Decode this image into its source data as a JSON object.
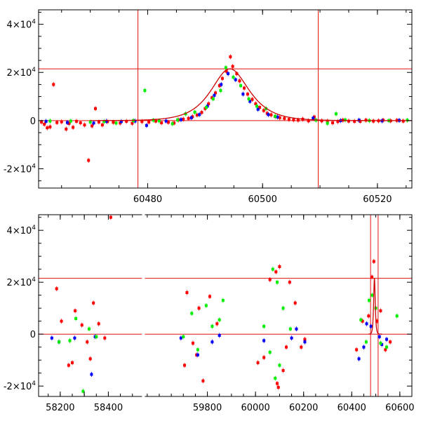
{
  "chart_data": [
    {
      "type": "scatter",
      "name": "zoom",
      "title": "",
      "xlabel": "",
      "ylabel": "",
      "xlim": [
        60461,
        60526
      ],
      "ylim": [
        -28000,
        46000
      ],
      "grid": false,
      "x_ticks": [
        60480,
        60500,
        60520
      ],
      "y_ticks": [
        {
          "value": -20000,
          "base": "-2×10",
          "exp": "4"
        },
        {
          "value": 0,
          "base": "0",
          "exp": ""
        },
        {
          "value": 20000,
          "base": "2×10",
          "exp": "4"
        },
        {
          "value": 40000,
          "base": "4×10",
          "exp": "4"
        }
      ],
      "reference_lines": {
        "horizontal": [
          0,
          21500
        ],
        "vertical": [
          60478.3,
          60509.7
        ]
      },
      "model_curve": {
        "color": "#cc0000",
        "baseline": 0,
        "peak_x": 60494.3,
        "peak_y": 21500,
        "rise_timescale": 2.9,
        "fall_timescale": 3.0
      },
      "series": [
        {
          "color": "#ff0000",
          "points": [
            [
              60461.5,
              -600
            ],
            [
              60462.0,
              -1500
            ],
            [
              60462.5,
              -3000
            ],
            [
              60463.0,
              -2600
            ],
            [
              60463.6,
              15000
            ],
            [
              60464.2,
              -800
            ],
            [
              60465.0,
              -500
            ],
            [
              60465.8,
              -3500
            ],
            [
              60466.3,
              -1200
            ],
            [
              60467.0,
              -2800
            ],
            [
              60467.6,
              -300
            ],
            [
              60468.3,
              -900
            ],
            [
              60469.0,
              -1800
            ],
            [
              60469.7,
              -16500
            ],
            [
              60470.3,
              -2200
            ],
            [
              60470.9,
              5000
            ],
            [
              60471.5,
              -600
            ],
            [
              60472.1,
              -1800
            ],
            [
              60473.0,
              -400
            ],
            [
              60474.0,
              -700
            ],
            [
              60475.2,
              -1000
            ],
            [
              60476.3,
              -300
            ],
            [
              60477.3,
              -1100
            ],
            [
              60479.0,
              -400
            ],
            [
              60480.2,
              -600
            ],
            [
              60481.4,
              -200
            ],
            [
              60482.4,
              -900
            ],
            [
              60483.6,
              -700
            ],
            [
              60484.6,
              -1000
            ],
            [
              60485.4,
              300
            ],
            [
              60486.2,
              600
            ],
            [
              60487.1,
              900
            ],
            [
              60487.8,
              1600
            ],
            [
              60488.6,
              2300
            ],
            [
              60489.4,
              3400
            ],
            [
              60490.0,
              5000
            ],
            [
              60490.6,
              7000
            ],
            [
              60491.2,
              9500
            ],
            [
              60491.8,
              11500
            ],
            [
              60492.5,
              14500
            ],
            [
              60493.0,
              17500
            ],
            [
              60493.7,
              20500
            ],
            [
              60494.4,
              26500
            ],
            [
              60494.8,
              22500
            ],
            [
              60495.5,
              19500
            ],
            [
              60496.0,
              16500
            ],
            [
              60496.8,
              13500
            ],
            [
              60497.4,
              11000
            ],
            [
              60498.2,
              8800
            ],
            [
              60498.8,
              7000
            ],
            [
              60499.5,
              5500
            ],
            [
              60500.2,
              4200
            ],
            [
              60500.8,
              3000
            ],
            [
              60501.5,
              2400
            ],
            [
              60502.2,
              1700
            ],
            [
              60503.0,
              1200
            ],
            [
              60503.8,
              900
            ],
            [
              60504.6,
              500
            ],
            [
              60505.4,
              300
            ],
            [
              60506.2,
              200
            ],
            [
              60507.0,
              600
            ],
            [
              60508.0,
              -100
            ],
            [
              60509.0,
              1500
            ],
            [
              60510.3,
              -100
            ],
            [
              60511.3,
              -200
            ],
            [
              60512.2,
              -900
            ],
            [
              60513.1,
              -400
            ],
            [
              60514.0,
              200
            ],
            [
              60515.0,
              -200
            ],
            [
              60516.0,
              -300
            ],
            [
              60517.0,
              -300
            ],
            [
              60518.0,
              200
            ],
            [
              60519.3,
              -200
            ],
            [
              60520.2,
              -100
            ],
            [
              60521.0,
              200
            ],
            [
              60522.3,
              -100
            ],
            [
              60523.4,
              100
            ],
            [
              60524.5,
              -200
            ]
          ]
        },
        {
          "color": "#0000ff",
          "points": [
            [
              60462.3,
              -300
            ],
            [
              60466.0,
              -800
            ],
            [
              60470.6,
              -1000
            ],
            [
              60472.8,
              -300
            ],
            [
              60475.4,
              -400
            ],
            [
              60477.8,
              -200
            ],
            [
              60479.8,
              -2000
            ],
            [
              60483.2,
              -200
            ],
            [
              60485.8,
              400
            ],
            [
              60487.6,
              1200
            ],
            [
              60489.0,
              2500
            ],
            [
              60490.4,
              6000
            ],
            [
              60491.6,
              10500
            ],
            [
              60492.8,
              15000
            ],
            [
              60494.0,
              19500
            ],
            [
              60495.3,
              17000
            ],
            [
              60496.6,
              11000
            ],
            [
              60497.8,
              8000
            ],
            [
              60499.2,
              4700
            ],
            [
              60501.0,
              2500
            ],
            [
              60502.6,
              1500
            ],
            [
              60508.8,
              1000
            ],
            [
              60513.6,
              0
            ],
            [
              60516.8,
              200
            ],
            [
              60520.8,
              -100
            ],
            [
              60523.8,
              100
            ]
          ]
        },
        {
          "color": "#00ee00",
          "points": [
            [
              60463.0,
              -200
            ],
            [
              60466.6,
              -200
            ],
            [
              60470.0,
              -600
            ],
            [
              60472.4,
              -400
            ],
            [
              60474.5,
              -1000
            ],
            [
              60477.5,
              0
            ],
            [
              60479.5,
              12500
            ],
            [
              60481.0,
              200
            ],
            [
              60482.0,
              -100
            ],
            [
              60484.3,
              -1300
            ],
            [
              60485.2,
              300
            ],
            [
              60486.6,
              2800
            ],
            [
              60488.2,
              3500
            ],
            [
              60490.2,
              5500
            ],
            [
              60491.4,
              9000
            ],
            [
              60492.7,
              12500
            ],
            [
              60493.6,
              22000
            ],
            [
              60494.9,
              18000
            ],
            [
              60496.2,
              14500
            ],
            [
              60497.6,
              9000
            ],
            [
              60499.0,
              6000
            ],
            [
              60500.6,
              5000
            ],
            [
              60502.2,
              1800
            ],
            [
              60509.3,
              200
            ],
            [
              60511.3,
              -1100
            ],
            [
              60512.8,
              2800
            ],
            [
              60514.4,
              300
            ],
            [
              60518.6,
              0
            ],
            [
              60522.0,
              0
            ],
            [
              60525.2,
              200
            ]
          ]
        }
      ]
    },
    {
      "type": "scatter",
      "name": "full",
      "title": "",
      "xlabel": "",
      "ylabel": "",
      "xlim": [
        58110,
        60650
      ],
      "ylim": [
        -24000,
        46000
      ],
      "grid": false,
      "axis_break": {
        "at": 58540
      },
      "x_ticks": [
        58200,
        58300,
        58400,
        59800,
        60000,
        60200,
        60400,
        60600
      ],
      "x_tick_labels": [
        "58200",
        "58400",
        "59800",
        "60000",
        "60200",
        "60400",
        "60600"
      ],
      "y_ticks": [
        {
          "value": -20000,
          "base": "-2×10",
          "exp": "4"
        },
        {
          "value": 0,
          "base": "0",
          "exp": ""
        },
        {
          "value": 20000,
          "base": "2×10",
          "exp": "4"
        },
        {
          "value": 40000,
          "base": "4×10",
          "exp": "4"
        }
      ],
      "reference_lines": {
        "horizontal": [
          0,
          21500
        ],
        "vertical": [
          60478.3,
          60509.7
        ]
      },
      "model_curve": {
        "color": "#cc0000",
        "baseline": 0,
        "peak_x": 60494.3,
        "peak_y": 21500,
        "rise_timescale": 2.9,
        "fall_timescale": 3.0
      },
      "series": [
        {
          "color": "#ff0000",
          "points": [
            [
              58185,
              17500
            ],
            [
              58205,
              5000
            ],
            [
              58235,
              -12000
            ],
            [
              58262,
              9000
            ],
            [
              58290,
              3500
            ],
            [
              58312,
              -3000
            ],
            [
              58338,
              12000
            ],
            [
              58385,
              -1500
            ],
            [
              58325,
              -9500
            ],
            [
              58250,
              -11000
            ],
            [
              58360,
              4000
            ],
            [
              58410,
              45000
            ],
            [
              59705,
              -12000
            ],
            [
              59715,
              16000
            ],
            [
              59740,
              -3500
            ],
            [
              59765,
              10000
            ],
            [
              59782,
              -18000
            ],
            [
              59810,
              14500
            ],
            [
              59840,
              4000
            ],
            [
              59755,
              -8000
            ],
            [
              60010,
              -11000
            ],
            [
              60035,
              -9000
            ],
            [
              60060,
              21000
            ],
            [
              60085,
              24000
            ],
            [
              60100,
              26000
            ],
            [
              60115,
              -14000
            ],
            [
              60128,
              -5000
            ],
            [
              60142,
              20000
            ],
            [
              60165,
              12000
            ],
            [
              60190,
              -5000
            ],
            [
              60205,
              -2000
            ],
            [
              60090,
              -19000
            ],
            [
              60095,
              -20500
            ],
            [
              60420,
              -6000
            ],
            [
              60445,
              5000
            ],
            [
              60470,
              7000
            ],
            [
              60484,
              22000
            ],
            [
              60492,
              28000
            ],
            [
              60505,
              5000
            ],
            [
              60520,
              9000
            ],
            [
              60540,
              -6000
            ],
            [
              60560,
              -3000
            ]
          ]
        },
        {
          "color": "#0000ff",
          "points": [
            [
              58165,
              -1500
            ],
            [
              58330,
              -15500
            ],
            [
              58345,
              -1000
            ],
            [
              58195,
              -3000
            ],
            [
              58260,
              -1500
            ],
            [
              59690,
              -1500
            ],
            [
              59760,
              -8000
            ],
            [
              59820,
              -3000
            ],
            [
              59850,
              -500
            ],
            [
              60035,
              -2500
            ],
            [
              60150,
              -1500
            ],
            [
              60170,
              2000
            ],
            [
              60205,
              -3000
            ],
            [
              60430,
              -9500
            ],
            [
              60450,
              -5000
            ],
            [
              60462,
              4000
            ],
            [
              60480,
              3000
            ],
            [
              60515,
              -1000
            ],
            [
              60525,
              -4000
            ],
            [
              60545,
              -2000
            ]
          ]
        },
        {
          "color": "#00ee00",
          "points": [
            [
              58195,
              -3000
            ],
            [
              58240,
              -2500
            ],
            [
              58265,
              6000
            ],
            [
              58295,
              -22000
            ],
            [
              58320,
              2000
            ],
            [
              58350,
              -1000
            ],
            [
              59700,
              -1000
            ],
            [
              59735,
              8000
            ],
            [
              59760,
              -6000
            ],
            [
              59795,
              11000
            ],
            [
              59820,
              3000
            ],
            [
              59850,
              5500
            ],
            [
              59865,
              13000
            ],
            [
              60035,
              3000
            ],
            [
              60060,
              -7000
            ],
            [
              60072,
              25000
            ],
            [
              60082,
              -17000
            ],
            [
              60090,
              20000
            ],
            [
              60100,
              -12000
            ],
            [
              60115,
              10000
            ],
            [
              60145,
              2000
            ],
            [
              60438,
              5500
            ],
            [
              60460,
              -3000
            ],
            [
              60472,
              13000
            ],
            [
              60485,
              15000
            ],
            [
              60500,
              10000
            ],
            [
              60520,
              -3500
            ],
            [
              60545,
              -5000
            ],
            [
              60588,
              7000
            ]
          ]
        }
      ]
    }
  ]
}
